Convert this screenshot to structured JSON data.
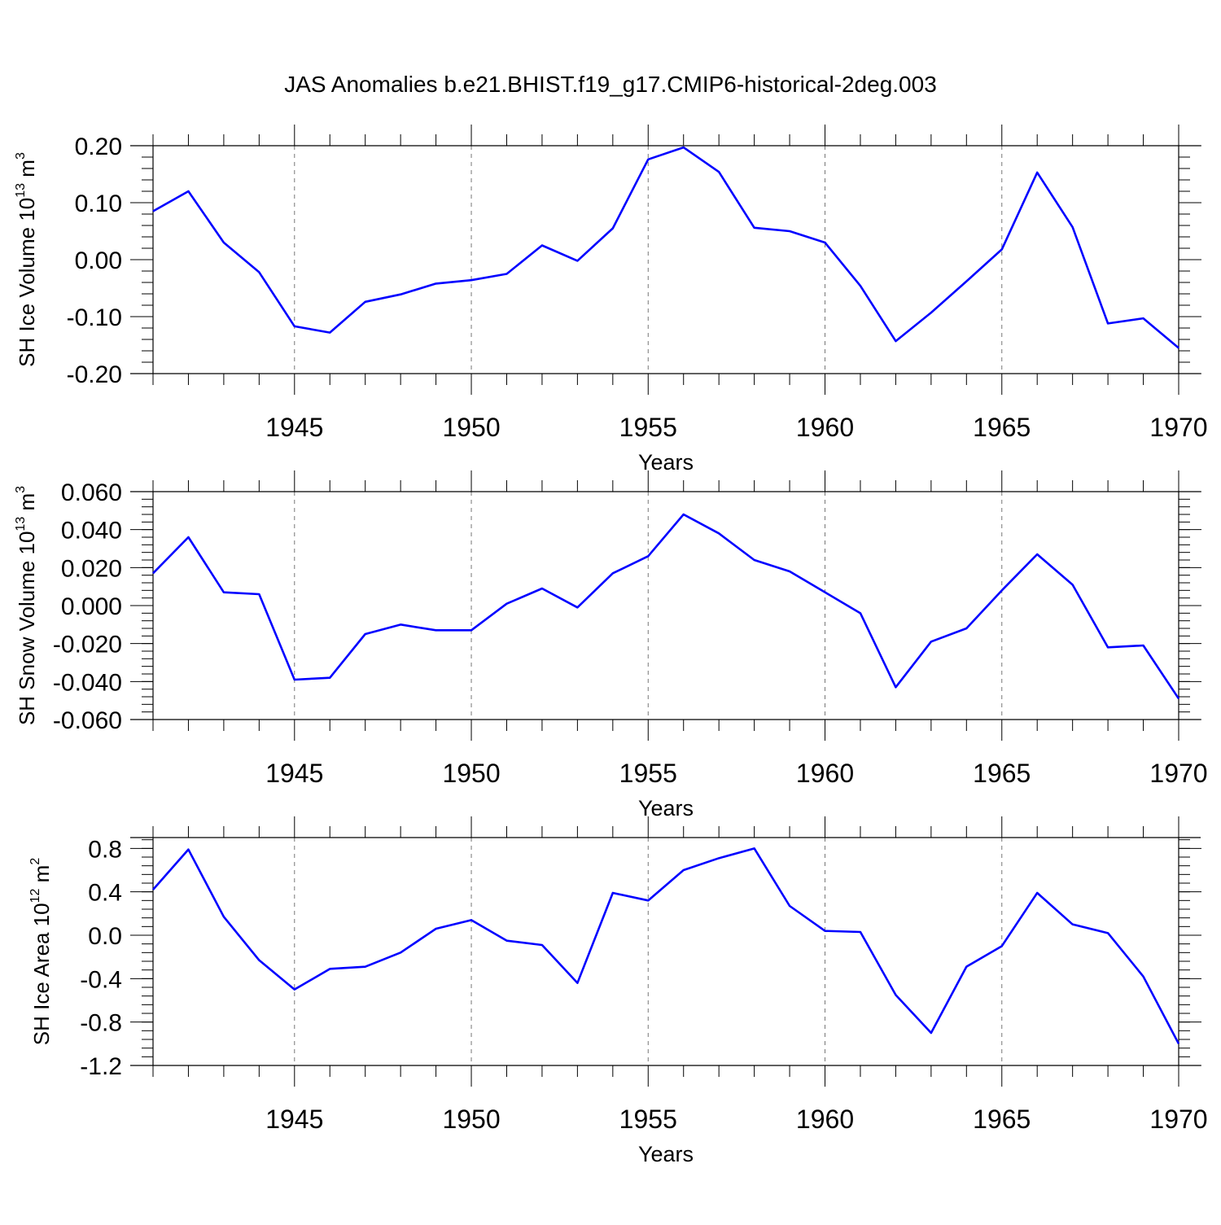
{
  "figure": {
    "title": "JAS Anomalies b.e21.BHIST.f19_g17.CMIP6-historical-2deg.003"
  },
  "style": {
    "line_color": "#0000ff",
    "axis_color": "#000000",
    "grid_color": "#777777"
  },
  "chart_data": [
    {
      "type": "line",
      "ylabel_main": "SH Ice Volume 10",
      "ylabel_exp": "13",
      "ylabel_unit": " m",
      "ylabel_unit_exp": "3",
      "xlabel": "Years",
      "xlim": [
        1941,
        1970
      ],
      "ylim": [
        -0.2,
        0.2
      ],
      "yticks": [
        -0.2,
        -0.1,
        0.0,
        0.1,
        0.2
      ],
      "ytick_labels": [
        "-0.20",
        "-0.10",
        "0.00",
        "0.10",
        "0.20"
      ],
      "xticks": [
        1945,
        1950,
        1955,
        1960,
        1965,
        1970
      ],
      "xtick_labels": [
        "1945",
        "1950",
        "1955",
        "1960",
        "1965",
        "1970"
      ],
      "grid": "vertical dashed at major x ticks",
      "series": [
        {
          "x": [
            1941,
            1942,
            1943,
            1944,
            1945,
            1946,
            1947,
            1948,
            1949,
            1950,
            1951,
            1952,
            1953,
            1954,
            1955,
            1956,
            1957,
            1958,
            1959,
            1960,
            1961,
            1962,
            1963,
            1964,
            1965,
            1966,
            1967,
            1968,
            1969,
            1970
          ],
          "values": [
            0.085,
            0.12,
            0.03,
            -0.022,
            -0.117,
            -0.128,
            -0.074,
            -0.061,
            -0.042,
            -0.036,
            -0.025,
            0.025,
            -0.002,
            0.055,
            0.176,
            0.197,
            0.154,
            0.056,
            0.05,
            0.03,
            -0.046,
            -0.143,
            -0.093,
            -0.038,
            0.018,
            0.153,
            0.057,
            -0.112,
            -0.103,
            -0.155
          ]
        }
      ]
    },
    {
      "type": "line",
      "ylabel_main": "SH Snow Volume 10",
      "ylabel_exp": "13",
      "ylabel_unit": " m",
      "ylabel_unit_exp": "3",
      "xlabel": "Years",
      "xlim": [
        1941,
        1970
      ],
      "ylim": [
        -0.06,
        0.06
      ],
      "yticks": [
        -0.06,
        -0.04,
        -0.02,
        0.0,
        0.02,
        0.04,
        0.06
      ],
      "ytick_labels": [
        "-0.060",
        "-0.040",
        "-0.020",
        "0.000",
        "0.020",
        "0.040",
        "0.060"
      ],
      "xticks": [
        1945,
        1950,
        1955,
        1960,
        1965,
        1970
      ],
      "xtick_labels": [
        "1945",
        "1950",
        "1955",
        "1960",
        "1965",
        "1970"
      ],
      "grid": "vertical dashed at major x ticks",
      "series": [
        {
          "x": [
            1941,
            1942,
            1943,
            1944,
            1945,
            1946,
            1947,
            1948,
            1949,
            1950,
            1951,
            1952,
            1953,
            1954,
            1955,
            1956,
            1957,
            1958,
            1959,
            1960,
            1961,
            1962,
            1963,
            1964,
            1965,
            1966,
            1967,
            1968,
            1969,
            1970
          ],
          "values": [
            0.017,
            0.036,
            0.007,
            0.006,
            -0.039,
            -0.038,
            -0.015,
            -0.01,
            -0.013,
            -0.013,
            0.001,
            0.009,
            -0.001,
            0.017,
            0.026,
            0.048,
            0.038,
            0.024,
            0.018,
            0.007,
            -0.004,
            -0.043,
            -0.019,
            -0.012,
            0.008,
            0.027,
            0.011,
            -0.022,
            -0.021,
            -0.049
          ]
        }
      ]
    },
    {
      "type": "line",
      "ylabel_main": "SH Ice Area 10",
      "ylabel_exp": "12",
      "ylabel_unit": " m",
      "ylabel_unit_exp": "2",
      "xlabel": "Years",
      "xlim": [
        1941,
        1970
      ],
      "ylim": [
        -1.2,
        0.9
      ],
      "yticks": [
        -1.2,
        -0.8,
        -0.4,
        0.0,
        0.4,
        0.8
      ],
      "ytick_labels": [
        "-1.2",
        "-0.8",
        "-0.4",
        "0.0",
        "0.4",
        "0.8"
      ],
      "xticks": [
        1945,
        1950,
        1955,
        1960,
        1965,
        1970
      ],
      "xtick_labels": [
        "1945",
        "1950",
        "1955",
        "1960",
        "1965",
        "1970"
      ],
      "grid": "vertical dashed at major x ticks",
      "series": [
        {
          "x": [
            1941,
            1942,
            1943,
            1944,
            1945,
            1946,
            1947,
            1948,
            1949,
            1950,
            1951,
            1952,
            1953,
            1954,
            1955,
            1956,
            1957,
            1958,
            1959,
            1960,
            1961,
            1962,
            1963,
            1964,
            1965,
            1966,
            1967,
            1968,
            1969,
            1970
          ],
          "values": [
            0.42,
            0.79,
            0.17,
            -0.23,
            -0.5,
            -0.31,
            -0.29,
            -0.16,
            0.06,
            0.14,
            -0.05,
            -0.09,
            -0.44,
            0.39,
            0.32,
            0.6,
            0.71,
            0.8,
            0.27,
            0.04,
            0.03,
            -0.55,
            -0.9,
            -0.29,
            -0.1,
            0.39,
            0.1,
            0.02,
            -0.38,
            -1.0
          ]
        }
      ]
    }
  ]
}
